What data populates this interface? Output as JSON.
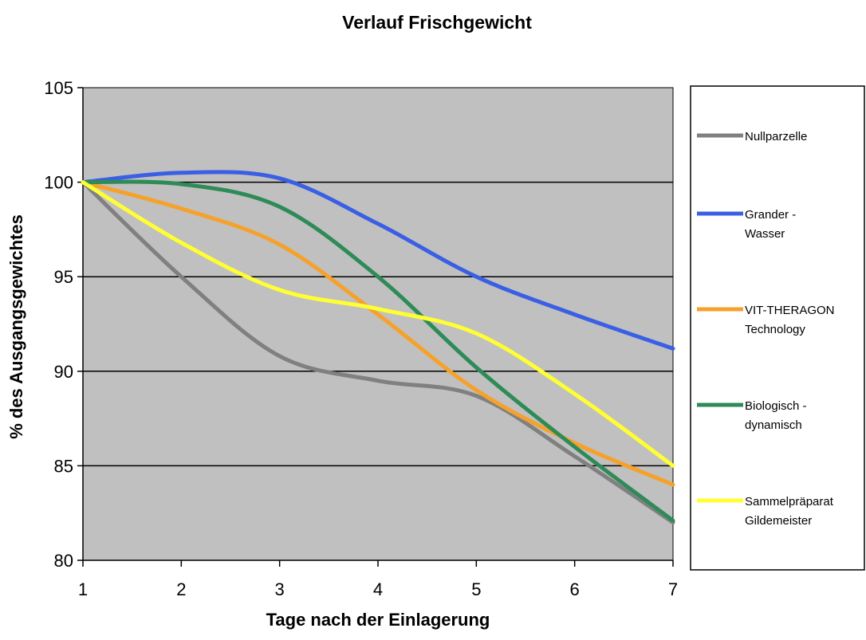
{
  "chart_data": {
    "type": "line",
    "title": "Verlauf Frischgewicht",
    "xlabel": "Tage nach der Einlagerung",
    "ylabel": "% des Ausgangsgewichtes",
    "x": [
      1,
      2,
      3,
      4,
      5,
      6,
      7
    ],
    "xlim": [
      1,
      7
    ],
    "ylim": [
      80,
      105
    ],
    "yticks": [
      80,
      85,
      90,
      95,
      100,
      105
    ],
    "grid": true,
    "plot_background": "#c0c0c0",
    "smooth": true,
    "legend_position": "right",
    "series": [
      {
        "name": "Nullparzelle",
        "color": "#808080",
        "values": [
          100,
          95,
          90.8,
          89.5,
          88.7,
          85.5,
          82
        ]
      },
      {
        "name": "Grander - Wasser",
        "color": "#3a5fe5",
        "values": [
          100,
          100.5,
          100.2,
          97.8,
          95,
          93,
          91.2
        ]
      },
      {
        "name": "VIT-THERAGON Technology",
        "color": "#f5a12a",
        "values": [
          100,
          98.6,
          96.7,
          93,
          89,
          86.2,
          84
        ]
      },
      {
        "name": "Biologisch - dynamisch",
        "color": "#2e8b57",
        "values": [
          100,
          99.9,
          98.7,
          95,
          90.2,
          86,
          82.1
        ]
      },
      {
        "name": "Sammelpräparat Gildemeister",
        "color": "#ffff33",
        "values": [
          100,
          96.8,
          94.3,
          93.3,
          92,
          88.8,
          85
        ]
      }
    ],
    "legend_lines": [
      [
        "Nullparzelle"
      ],
      [
        "Grander -",
        "Wasser"
      ],
      [
        "VIT-THERAGON",
        "Technology"
      ],
      [
        "Biologisch -",
        "dynamisch"
      ],
      [
        "Sammelpräparat",
        "Gildemeister"
      ]
    ]
  }
}
